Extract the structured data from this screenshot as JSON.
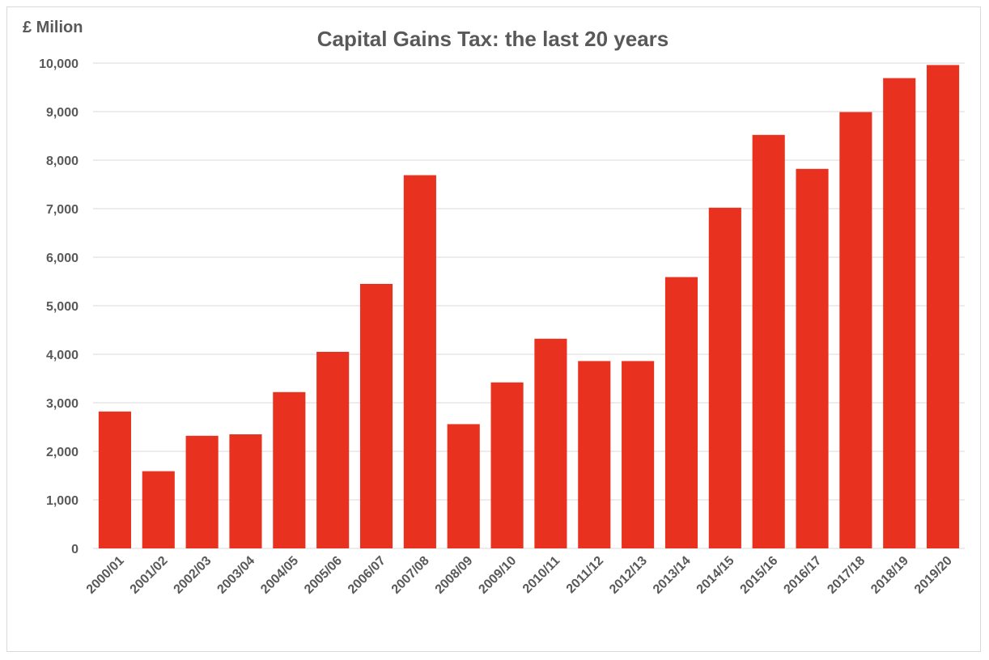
{
  "chart_data": {
    "type": "bar",
    "title": "Capital Gains Tax: the last 20 years",
    "ylabel": "£ Milion",
    "xlabel": "",
    "ylim": [
      0,
      10000
    ],
    "yticks": [
      0,
      1000,
      2000,
      3000,
      4000,
      5000,
      6000,
      7000,
      8000,
      9000,
      10000
    ],
    "ytick_labels": [
      "0",
      "1,000",
      "2,000",
      "3,000",
      "4,000",
      "5,000",
      "6,000",
      "7,000",
      "8,000",
      "9,000",
      "10,000"
    ],
    "grid": true,
    "legend": "none",
    "bar_color": "#e8321f",
    "categories": [
      "2000/01",
      "2001/02",
      "2002/03",
      "2003/04",
      "2004/05",
      "2005/06",
      "2006/07",
      "2007/08",
      "2008/09",
      "2009/10",
      "2010/11",
      "2011/12",
      "2012/13",
      "2013/14",
      "2014/15",
      "2015/16",
      "2016/17",
      "2017/18",
      "2018/19",
      "2019/20"
    ],
    "values": [
      2820,
      1590,
      2320,
      2350,
      3220,
      4050,
      5450,
      7690,
      2560,
      3420,
      4320,
      3860,
      3860,
      5590,
      7020,
      8520,
      7820,
      8990,
      9690,
      9960
    ]
  }
}
